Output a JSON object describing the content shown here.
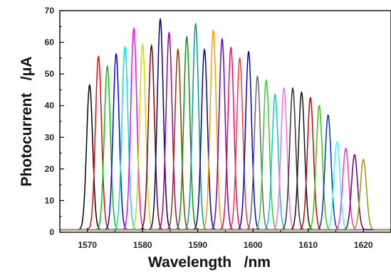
{
  "chart_data": {
    "type": "line",
    "title": "",
    "xlabel": "Wavelength   /nm",
    "ylabel": "Photocurrent   /μA",
    "xlim": [
      1565,
      1625
    ],
    "ylim": [
      0,
      70
    ],
    "xticks": [
      1570,
      1580,
      1590,
      1600,
      1610,
      1620
    ],
    "yticks": [
      0,
      10,
      20,
      30,
      40,
      50,
      60,
      70
    ],
    "x_tick_labels": [
      "1570",
      "1580",
      "1590",
      "1600",
      "1610",
      "1620"
    ],
    "y_tick_labels": [
      "0",
      "10",
      "20",
      "30",
      "40",
      "50",
      "60",
      "70"
    ],
    "grid": false,
    "legend": "none",
    "peak_width_nm": 0.55,
    "baseline": 0.8,
    "series": [
      {
        "peak_wavelength": 1570.4,
        "peak_value": 46.5,
        "color": "#000000"
      },
      {
        "peak_wavelength": 1572.0,
        "peak_value": 55.5,
        "color": "#ff0000"
      },
      {
        "peak_wavelength": 1573.6,
        "peak_value": 52.5,
        "color": "#00cc00"
      },
      {
        "peak_wavelength": 1575.2,
        "peak_value": 56.3,
        "color": "#0000ff"
      },
      {
        "peak_wavelength": 1576.8,
        "peak_value": 58.5,
        "color": "#00e5e5"
      },
      {
        "peak_wavelength": 1578.4,
        "peak_value": 64.3,
        "color": "#ff00ff"
      },
      {
        "peak_wavelength": 1580.0,
        "peak_value": 59.3,
        "color": "#d4d400"
      },
      {
        "peak_wavelength": 1581.6,
        "peak_value": 59.0,
        "color": "#7f0000"
      },
      {
        "peak_wavelength": 1583.2,
        "peak_value": 67.3,
        "color": "#000080"
      },
      {
        "peak_wavelength": 1584.8,
        "peak_value": 63.0,
        "color": "#990099"
      },
      {
        "peak_wavelength": 1586.4,
        "peak_value": 57.7,
        "color": "#993300"
      },
      {
        "peak_wavelength": 1588.0,
        "peak_value": 61.7,
        "color": "#009900"
      },
      {
        "peak_wavelength": 1589.6,
        "peak_value": 65.8,
        "color": "#009999"
      },
      {
        "peak_wavelength": 1591.2,
        "peak_value": 57.7,
        "color": "#000099"
      },
      {
        "peak_wavelength": 1592.8,
        "peak_value": 63.7,
        "color": "#ff9900"
      },
      {
        "peak_wavelength": 1594.4,
        "peak_value": 61.0,
        "color": "#6600cc"
      },
      {
        "peak_wavelength": 1596.0,
        "peak_value": 58.3,
        "color": "#ff0066"
      },
      {
        "peak_wavelength": 1597.6,
        "peak_value": 55.0,
        "color": "#ff3333"
      },
      {
        "peak_wavelength": 1599.2,
        "peak_value": 57.0,
        "color": "#0000cc"
      },
      {
        "peak_wavelength": 1600.8,
        "peak_value": 49.2,
        "color": "#666666"
      },
      {
        "peak_wavelength": 1602.4,
        "peak_value": 48.0,
        "color": "#33cc33"
      },
      {
        "peak_wavelength": 1604.0,
        "peak_value": 43.5,
        "color": "#00cccc"
      },
      {
        "peak_wavelength": 1605.6,
        "peak_value": 45.5,
        "color": "#ff66ff"
      },
      {
        "peak_wavelength": 1607.2,
        "peak_value": 45.5,
        "color": "#333333"
      },
      {
        "peak_wavelength": 1608.8,
        "peak_value": 44.2,
        "color": "#111111"
      },
      {
        "peak_wavelength": 1610.4,
        "peak_value": 42.5,
        "color": "#cc0000"
      },
      {
        "peak_wavelength": 1612.0,
        "peak_value": 40.0,
        "color": "#33cc00"
      },
      {
        "peak_wavelength": 1613.6,
        "peak_value": 37.0,
        "color": "#0033cc"
      },
      {
        "peak_wavelength": 1615.2,
        "peak_value": 28.5,
        "color": "#33ffff"
      },
      {
        "peak_wavelength": 1616.8,
        "peak_value": 26.5,
        "color": "#ff33cc"
      },
      {
        "peak_wavelength": 1618.4,
        "peak_value": 24.5,
        "color": "#660066"
      },
      {
        "peak_wavelength": 1620.0,
        "peak_value": 23.0,
        "color": "#999900"
      }
    ]
  }
}
